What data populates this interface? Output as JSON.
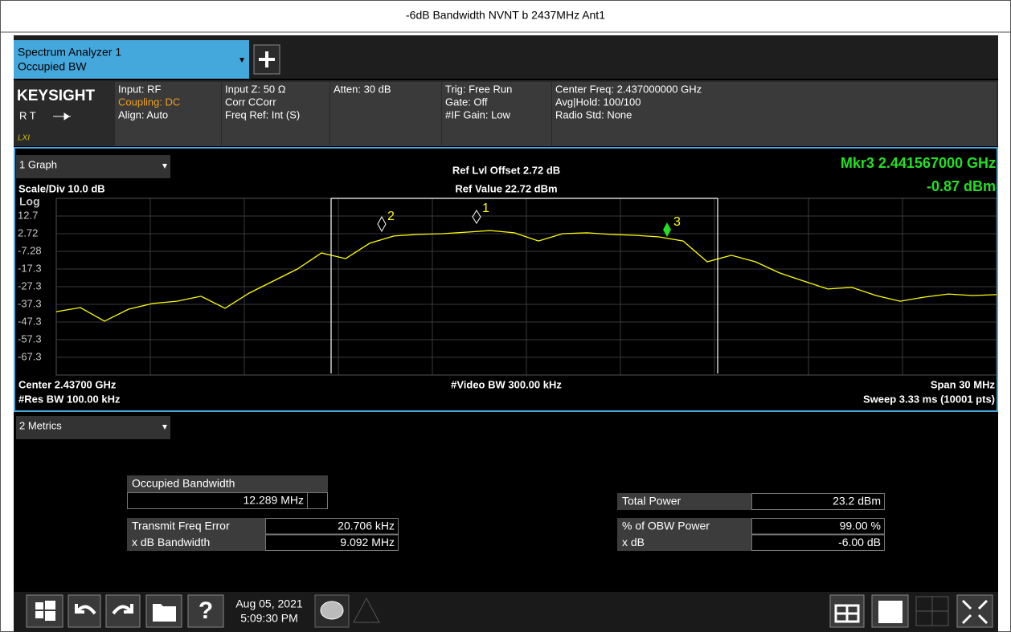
{
  "title": "-6dB Bandwidth NVNT b 2437MHz Ant1",
  "tab": {
    "line1": "Spectrum Analyzer 1",
    "line2": "Occupied BW"
  },
  "info": {
    "brand": "KEYSIGHT",
    "rt": "R  T",
    "lxi": "LXI",
    "col1": [
      "Input: RF",
      "Coupling: DC",
      "Align: Auto"
    ],
    "col2": [
      "Input Z: 50 Ω",
      "Corr CCorr",
      "Freq Ref: Int (S)"
    ],
    "col3": [
      "Atten: 30 dB"
    ],
    "col4": [
      "Trig: Free Run",
      "Gate: Off",
      "#IF Gain: Low"
    ],
    "col5": [
      "Center Freq: 2.437000000 GHz",
      "Avg|Hold: 100/100",
      "Radio Std: None"
    ]
  },
  "graph": {
    "panel": "1 Graph",
    "scale": "Scale/Div 10.0 dB",
    "ref_offset": "Ref Lvl Offset 2.72 dB",
    "ref_value": "Ref Value 22.72 dBm",
    "marker_freq": "Mkr3  2.441567000 GHz",
    "marker_level": "-0.87 dBm",
    "log": "Log",
    "center": "Center 2.43700 GHz",
    "video_bw": "#Video BW 300.00 kHz",
    "span": "Span 30 MHz",
    "res_bw": "#Res BW 100.00 kHz",
    "sweep": "Sweep 3.33 ms (10001 pts)",
    "markers": [
      "1",
      "2",
      "3"
    ],
    "chart_data": {
      "type": "line",
      "color": "#ffff00",
      "ylim": [
        -77.28,
        22.72
      ],
      "yticks": [
        {
          "value": 12.72,
          "label": "12.7"
        },
        2.72,
        {
          "value": -7.28,
          "label": "-7.28"
        },
        {
          "value": -17.28,
          "label": "-17.3"
        },
        {
          "value": -27.28,
          "label": "-27.3"
        },
        {
          "value": -37.28,
          "label": "-37.3"
        },
        {
          "value": -47.28,
          "label": "-47.3"
        },
        {
          "value": -57.28,
          "label": "-57.3"
        },
        {
          "value": -67.28,
          "label": "-67.3"
        }
      ],
      "grid": true,
      "values": [
        -41.4,
        -39.1,
        -46.8,
        -40.0,
        -36.8,
        -35.5,
        -32.7,
        -39.5,
        -30.9,
        -24.1,
        -17.3,
        -8.2,
        -11.4,
        -2.7,
        1.4,
        2.3,
        2.7,
        3.6,
        4.5,
        3.2,
        -1.4,
        2.7,
        3.2,
        2.3,
        1.8,
        0.9,
        -1.4,
        -13.2,
        -9.5,
        -13.2,
        -19.5,
        -24.1,
        -28.6,
        -27.7,
        -32.3,
        -35.5,
        -33.2,
        -31.4,
        -32.3,
        -31.8
      ]
    }
  },
  "metrics": {
    "panel": "2 Metrics",
    "obw_label": "Occupied Bandwidth",
    "obw_value": "12.289 MHz",
    "rows_left": [
      [
        "Transmit Freq Error",
        "20.706 kHz"
      ],
      [
        "x dB Bandwidth",
        "9.092 MHz"
      ]
    ],
    "total_label": "Total Power",
    "total_value": "23.2 dBm",
    "rows_right": [
      [
        "% of OBW Power",
        "99.00 %"
      ],
      [
        "x dB",
        "-6.00 dB"
      ]
    ]
  },
  "taskbar": {
    "date": "Aug 05, 2021",
    "time": "5:09:30 PM"
  }
}
